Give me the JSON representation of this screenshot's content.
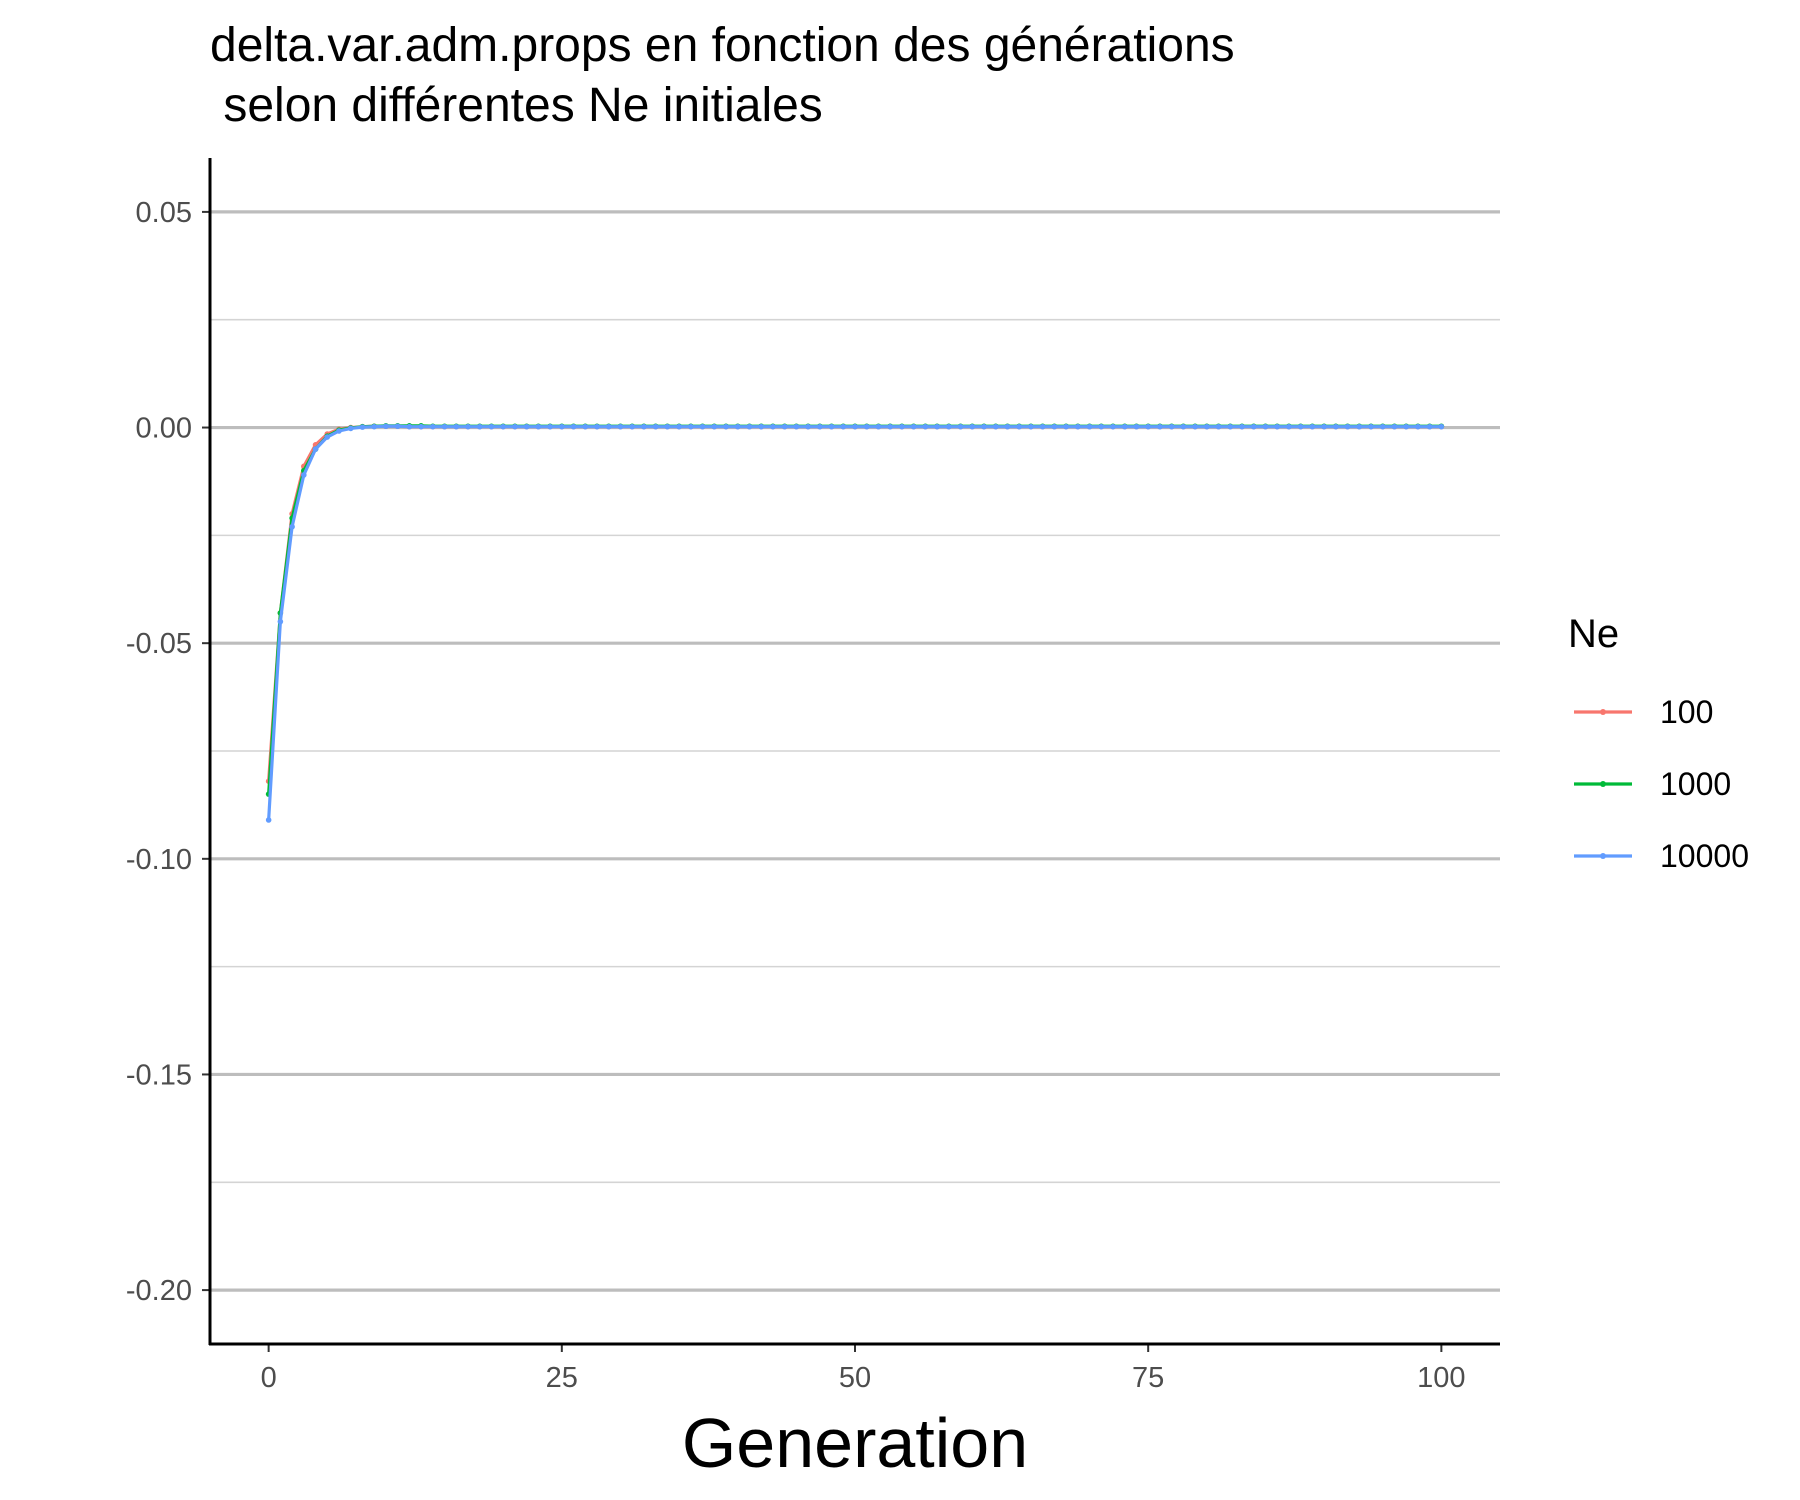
{
  "chart_data": {
    "type": "line",
    "title_lines": [
      "delta.var.adm.props en fonction des générations",
      " selon différentes Ne initiales"
    ],
    "xlabel": "Generation",
    "ylabel": "",
    "xlim": [
      -5,
      105
    ],
    "ylim": [
      -0.2125,
      0.0625
    ],
    "x_ticks": [
      0,
      25,
      50,
      75,
      100
    ],
    "x_tick_labels": [
      "0",
      "25",
      "50",
      "75",
      "100"
    ],
    "y_ticks": [
      0.05,
      0.0,
      -0.05,
      -0.1,
      -0.15,
      -0.2
    ],
    "y_tick_labels": [
      "0.05",
      "0.00",
      "-0.05",
      "-0.10",
      "-0.15",
      "-0.20"
    ],
    "y_minor_ticks": [
      0.025,
      -0.025,
      -0.075,
      -0.125,
      -0.175
    ],
    "grid": true,
    "legend": {
      "title": "Ne",
      "placement": "right"
    },
    "x": [
      0,
      1,
      2,
      3,
      4,
      5,
      6,
      7,
      8,
      9,
      10,
      11,
      12,
      13,
      14,
      15,
      16,
      17,
      18,
      19,
      20,
      21,
      22,
      23,
      24,
      25,
      26,
      27,
      28,
      29,
      30,
      31,
      32,
      33,
      34,
      35,
      36,
      37,
      38,
      39,
      40,
      41,
      42,
      43,
      44,
      45,
      46,
      47,
      48,
      49,
      50,
      51,
      52,
      53,
      54,
      55,
      56,
      57,
      58,
      59,
      60,
      61,
      62,
      63,
      64,
      65,
      66,
      67,
      68,
      69,
      70,
      71,
      72,
      73,
      74,
      75,
      76,
      77,
      78,
      79,
      80,
      81,
      82,
      83,
      84,
      85,
      86,
      87,
      88,
      89,
      90,
      91,
      92,
      93,
      94,
      95,
      96,
      97,
      98,
      99,
      100
    ],
    "series": [
      {
        "name": "100",
        "color": "#F8766D",
        "head": [
          -0.082,
          -0.043,
          -0.02,
          -0.009,
          -0.004,
          -0.0015,
          -0.0004,
          0.0,
          0.0002,
          0.0003,
          0.0003,
          0.0003
        ],
        "tail_value": 0.0002
      },
      {
        "name": "1000",
        "color": "#00BA38",
        "head": [
          -0.085,
          -0.043,
          -0.021,
          -0.01,
          -0.005,
          -0.002,
          -0.0006,
          -0.0001,
          0.0002,
          0.0003,
          0.0004,
          0.0004,
          0.0004,
          0.0004
        ],
        "tail_value": 0.0003
      },
      {
        "name": "10000",
        "color": "#619CFF",
        "head": [
          -0.091,
          -0.045,
          -0.023,
          -0.011,
          -0.005,
          -0.0022,
          -0.0008,
          -0.0002,
          0.0001,
          0.0002,
          0.0003,
          0.0003
        ],
        "tail_value": 0.0002
      }
    ]
  }
}
